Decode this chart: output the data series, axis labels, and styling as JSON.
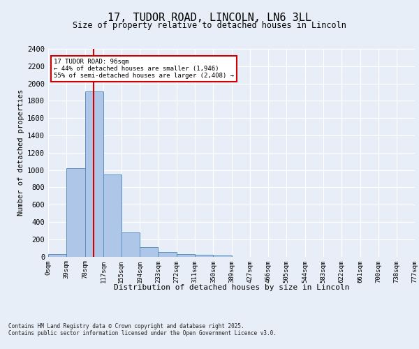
{
  "title_line1": "17, TUDOR ROAD, LINCOLN, LN6 3LL",
  "title_line2": "Size of property relative to detached houses in Lincoln",
  "xlabel": "Distribution of detached houses by size in Lincoln",
  "ylabel": "Number of detached properties",
  "annotation_title": "17 TUDOR ROAD: 96sqm",
  "annotation_line2": "← 44% of detached houses are smaller (1,946)",
  "annotation_line3": "55% of semi-detached houses are larger (2,408) →",
  "property_size": 96,
  "bin_edges": [
    0,
    39,
    78,
    117,
    155,
    194,
    233,
    272,
    311,
    350,
    389,
    427,
    466,
    505,
    544,
    583,
    622,
    661,
    700,
    738,
    777
  ],
  "bin_labels": [
    "0sqm",
    "39sqm",
    "78sqm",
    "117sqm",
    "155sqm",
    "194sqm",
    "233sqm",
    "272sqm",
    "311sqm",
    "350sqm",
    "389sqm",
    "427sqm",
    "466sqm",
    "505sqm",
    "544sqm",
    "583sqm",
    "622sqm",
    "661sqm",
    "700sqm",
    "738sqm",
    "777sqm"
  ],
  "bar_heights": [
    30,
    1020,
    1910,
    950,
    275,
    110,
    55,
    30,
    20,
    10,
    0,
    0,
    0,
    0,
    0,
    0,
    0,
    0,
    0,
    0
  ],
  "bar_color": "#aec6e8",
  "bar_edge_color": "#5a8fbe",
  "vline_color": "#cc0000",
  "annotation_box_color": "#cc0000",
  "bg_color": "#e8eef7",
  "plot_bg_color": "#e8eef7",
  "grid_color": "#ffffff",
  "ylim": [
    0,
    2400
  ],
  "yticks": [
    0,
    200,
    400,
    600,
    800,
    1000,
    1200,
    1400,
    1600,
    1800,
    2000,
    2200,
    2400
  ],
  "footer_line1": "Contains HM Land Registry data © Crown copyright and database right 2025.",
  "footer_line2": "Contains public sector information licensed under the Open Government Licence v3.0."
}
